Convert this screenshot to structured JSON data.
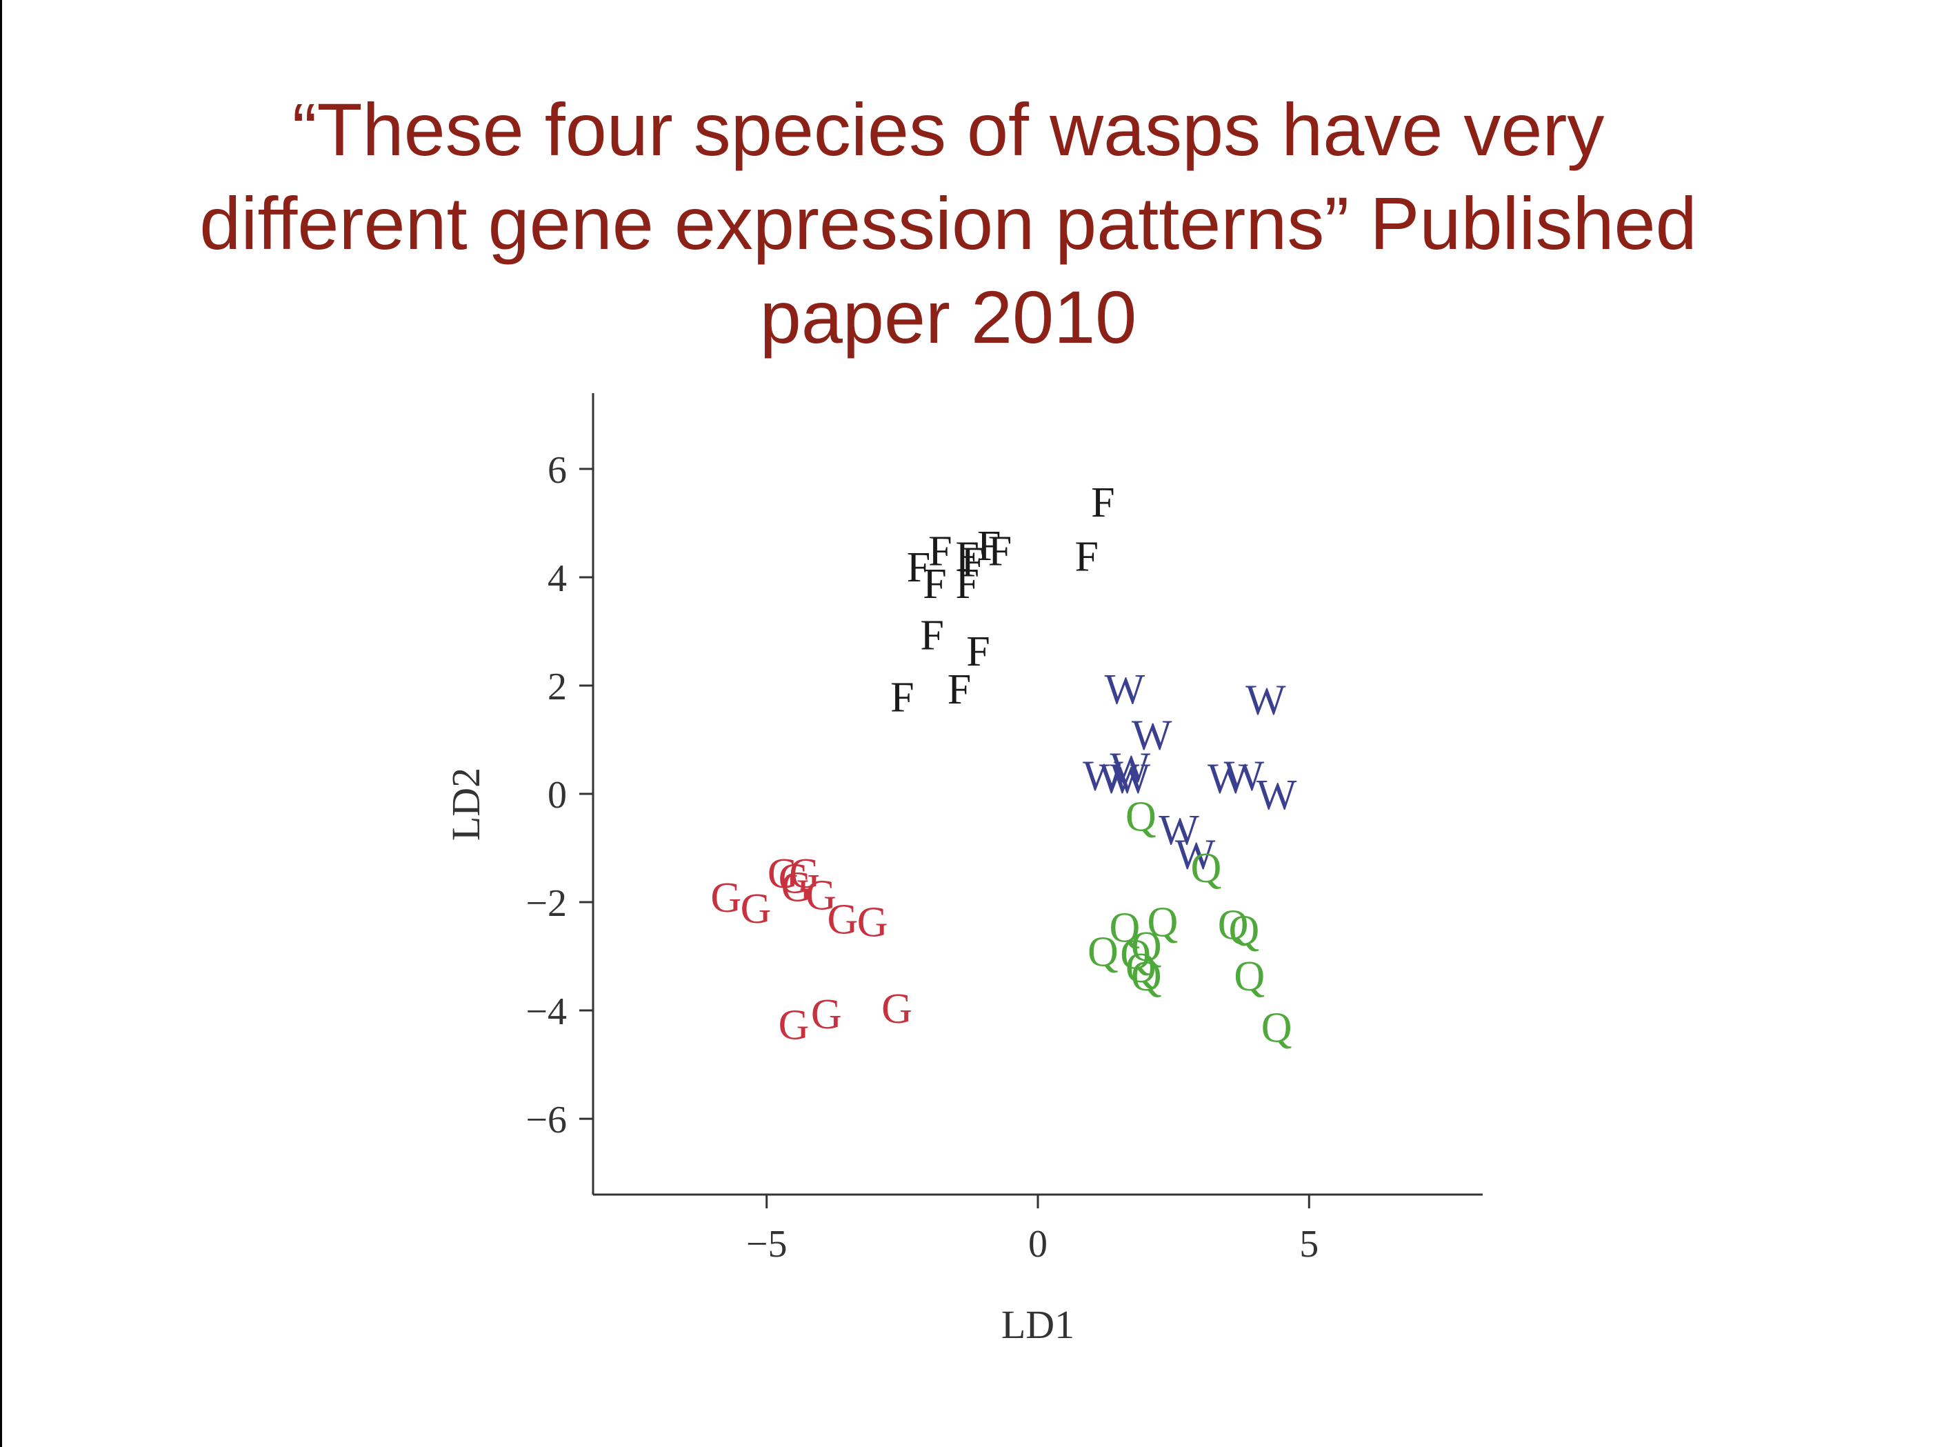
{
  "slide": {
    "title_lines": [
      "“These four species of wasps have very",
      "different gene expression patterns” Published",
      "paper 2010"
    ]
  },
  "chart_data": {
    "type": "scatter",
    "xlabel": "LD1",
    "ylabel": "LD2",
    "xlim": [
      -8.2,
      8.2
    ],
    "ylim": [
      -7.4,
      7.4
    ],
    "xticks": [
      -5,
      0,
      5
    ],
    "xtick_labels": [
      "−5",
      "0",
      "5"
    ],
    "yticks": [
      -6,
      -4,
      -2,
      0,
      2,
      4,
      6
    ],
    "ytick_labels": [
      "−6",
      "−4",
      "−2",
      "0",
      "2",
      "4",
      "6"
    ],
    "grid": false,
    "series": [
      {
        "marker": "F",
        "color": "#1a1a1a",
        "points": [
          [
            1.2,
            5.4
          ],
          [
            0.9,
            4.4
          ],
          [
            -1.8,
            4.5
          ],
          [
            -2.2,
            4.2
          ],
          [
            -1.9,
            3.9
          ],
          [
            -1.3,
            4.4
          ],
          [
            -1.2,
            4.3
          ],
          [
            -0.9,
            4.6
          ],
          [
            -0.7,
            4.5
          ],
          [
            -1.3,
            3.9
          ],
          [
            -1.95,
            2.95
          ],
          [
            -1.1,
            2.65
          ],
          [
            -2.5,
            1.8
          ],
          [
            -1.45,
            1.95
          ]
        ]
      },
      {
        "marker": "W",
        "color": "#3a3f8f",
        "points": [
          [
            1.6,
            1.95
          ],
          [
            4.2,
            1.75
          ],
          [
            2.1,
            1.1
          ],
          [
            1.7,
            0.5
          ],
          [
            1.2,
            0.35
          ],
          [
            1.5,
            0.3
          ],
          [
            1.7,
            0.3
          ],
          [
            3.5,
            0.3
          ],
          [
            3.8,
            0.35
          ],
          [
            4.4,
            0.0
          ],
          [
            2.6,
            -0.65
          ],
          [
            2.9,
            -1.1
          ]
        ]
      },
      {
        "marker": "Q",
        "color": "#4ea83a",
        "points": [
          [
            1.9,
            -0.4
          ],
          [
            3.1,
            -1.35
          ],
          [
            2.3,
            -2.35
          ],
          [
            1.6,
            -2.45
          ],
          [
            3.6,
            -2.4
          ],
          [
            3.8,
            -2.5
          ],
          [
            2.0,
            -2.8
          ],
          [
            1.8,
            -2.95
          ],
          [
            1.2,
            -2.9
          ],
          [
            1.9,
            -3.2
          ],
          [
            2.0,
            -3.35
          ],
          [
            3.9,
            -3.35
          ],
          [
            4.4,
            -4.3
          ]
        ]
      },
      {
        "marker": "G",
        "color": "#c8323f",
        "points": [
          [
            -4.7,
            -1.45
          ],
          [
            -4.3,
            -1.45
          ],
          [
            -4.5,
            -1.55
          ],
          [
            -4.45,
            -1.7
          ],
          [
            -4.0,
            -1.85
          ],
          [
            -5.75,
            -1.9
          ],
          [
            -5.2,
            -2.1
          ],
          [
            -3.6,
            -2.3
          ],
          [
            -3.05,
            -2.35
          ],
          [
            -4.5,
            -4.25
          ],
          [
            -3.9,
            -4.05
          ],
          [
            -2.6,
            -3.95
          ]
        ]
      }
    ]
  }
}
